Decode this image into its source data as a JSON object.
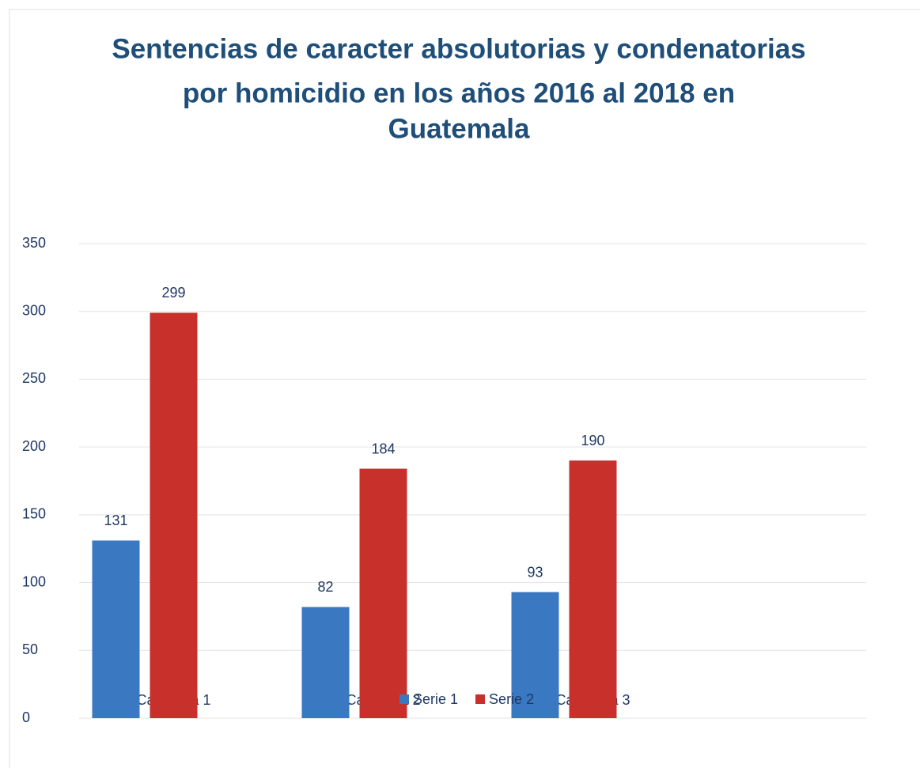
{
  "chart_data": {
    "type": "bar",
    "title": [
      "Sentencias de caracter absolutorias y condenatorias",
      "por homicidio en los años 2016 al 2018 en",
      "Guatemala"
    ],
    "categories": [
      "Categoría 1",
      "Categoría 2",
      "Categoría 3"
    ],
    "series": [
      {
        "name": "Serie 1",
        "color": "#3a78c2",
        "values": [
          131,
          82,
          93
        ]
      },
      {
        "name": "Serie 2",
        "color": "#c8302c",
        "values": [
          299,
          184,
          190
        ]
      }
    ],
    "ylim": [
      0,
      350
    ],
    "yticks": [
      0,
      50,
      100,
      150,
      200,
      250,
      300,
      350
    ],
    "grid": true,
    "legend": "bottom"
  }
}
